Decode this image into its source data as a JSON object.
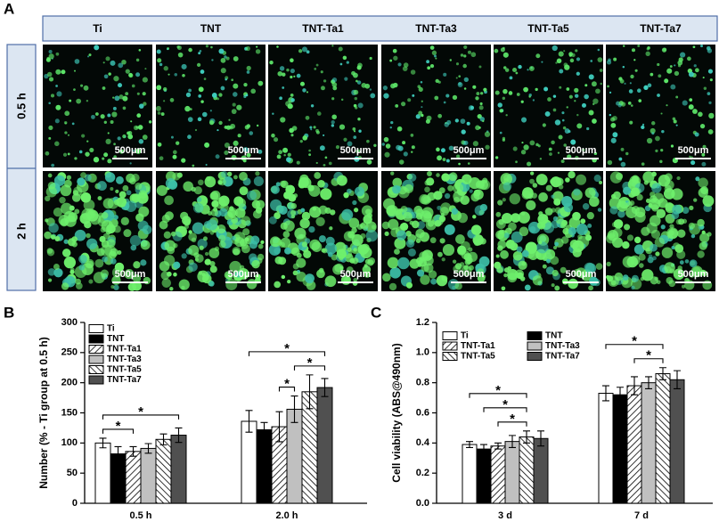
{
  "panel_labels": [
    "A",
    "B",
    "C"
  ],
  "image_grid": {
    "columns": [
      "Ti",
      "TNT",
      "TNT-Ta1",
      "TNT-Ta3",
      "TNT-Ta5",
      "TNT-Ta7"
    ],
    "rows": [
      "0.5 h",
      "2 h"
    ],
    "scale_bar": "500μm"
  },
  "chart_data": [
    {
      "type": "bar",
      "y_label": "Number (% - Ti group at 0.5 h)",
      "categories": [
        "0.5 h",
        "2.0 h"
      ],
      "ylim": [
        0,
        300
      ],
      "yticks": [
        0,
        50,
        100,
        150,
        200,
        250,
        300
      ],
      "legend_columns": 1,
      "series": [
        {
          "name": "Ti",
          "color": "#ffffff",
          "values": [
            100,
            136
          ],
          "errors": [
            8,
            18
          ]
        },
        {
          "name": "TNT",
          "color": "#000000",
          "values": [
            82,
            122
          ],
          "errors": [
            12,
            12
          ]
        },
        {
          "name": "TNT-Ta1",
          "color": "#ffffff",
          "hatch": "forward",
          "values": [
            86,
            127
          ],
          "errors": [
            8,
            25
          ]
        },
        {
          "name": "TNT-Ta3",
          "color": "#c0c0c0",
          "values": [
            91,
            156
          ],
          "errors": [
            8,
            22
          ]
        },
        {
          "name": "TNT-Ta5",
          "color": "#ffffff",
          "hatch": "back",
          "values": [
            106,
            185
          ],
          "errors": [
            9,
            28
          ]
        },
        {
          "name": "TNT-Ta7",
          "color": "#505050",
          "values": [
            113,
            192
          ],
          "errors": [
            12,
            15
          ]
        }
      ],
      "annotations": [
        {
          "text": "*",
          "group": 0,
          "span": [
            0,
            2
          ]
        },
        {
          "text": "*",
          "group": 0,
          "span": [
            0,
            5
          ]
        },
        {
          "text": "*",
          "group": 1,
          "span": [
            2,
            3
          ]
        },
        {
          "text": "*",
          "group": 1,
          "span": [
            3,
            5
          ]
        },
        {
          "text": "*",
          "group": 1,
          "span": [
            0,
            5
          ]
        }
      ]
    },
    {
      "type": "bar",
      "y_label": "Cell viability (ABS@490nm)",
      "categories": [
        "3 d",
        "7 d"
      ],
      "ylim": [
        0,
        1.2
      ],
      "yticks": [
        {
          "value": 0,
          "label": "0.0"
        },
        0.2,
        0.4,
        0.6,
        0.8,
        {
          "value": 1,
          "label": "1.0"
        },
        1.2
      ],
      "legend_columns": 2,
      "series": [
        {
          "name": "Ti",
          "color": "#ffffff",
          "values": [
            0.39,
            0.73
          ],
          "errors": [
            0.02,
            0.05
          ]
        },
        {
          "name": "TNT",
          "color": "#000000",
          "values": [
            0.36,
            0.72
          ],
          "errors": [
            0.03,
            0.05
          ]
        },
        {
          "name": "TNT-Ta1",
          "color": "#ffffff",
          "hatch": "forward",
          "values": [
            0.38,
            0.78
          ],
          "errors": [
            0.02,
            0.06
          ]
        },
        {
          "name": "TNT-Ta3",
          "color": "#c0c0c0",
          "values": [
            0.41,
            0.8
          ],
          "errors": [
            0.04,
            0.04
          ]
        },
        {
          "name": "TNT-Ta5",
          "color": "#ffffff",
          "hatch": "back",
          "values": [
            0.44,
            0.86
          ],
          "errors": [
            0.04,
            0.04
          ]
        },
        {
          "name": "TNT-Ta7",
          "color": "#505050",
          "values": [
            0.43,
            0.82
          ],
          "errors": [
            0.05,
            0.06
          ]
        }
      ],
      "annotations": [
        {
          "text": "*",
          "group": 0,
          "span": [
            2,
            4
          ]
        },
        {
          "text": "*",
          "group": 0,
          "span": [
            1,
            4
          ]
        },
        {
          "text": "*",
          "group": 0,
          "span": [
            0,
            4
          ]
        },
        {
          "text": "*",
          "group": 1,
          "span": [
            2,
            4
          ]
        },
        {
          "text": "*",
          "group": 1,
          "span": [
            0,
            4
          ]
        }
      ]
    }
  ]
}
